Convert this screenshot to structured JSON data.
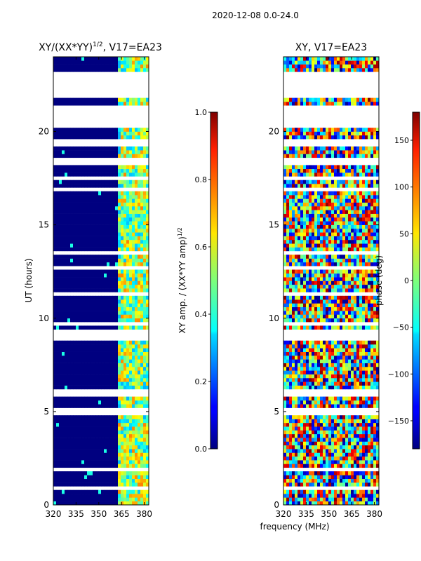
{
  "suptitle": "2020-12-08 0.0-24.0",
  "chart_data": [
    {
      "type": "heatmap",
      "title_main": "XY/(XX*YY)",
      "title_exp": "1/2",
      "title_tail": ", V17=EA23",
      "xlabel": "",
      "ylabel": "UT (hours)",
      "xlim": [
        320,
        383
      ],
      "ylim": [
        0,
        24
      ],
      "xticks": [
        "320",
        "335",
        "350",
        "365",
        "380"
      ],
      "xtick_values": [
        320,
        335,
        350,
        365,
        380
      ],
      "yticks": [
        "0",
        "5",
        "10",
        "15",
        "20"
      ],
      "ytick_values": [
        0,
        5,
        10,
        15,
        20
      ],
      "colorbar": {
        "label": "XY amp. / (XX*YY amp)",
        "label_exp": "1/2",
        "range": [
          0.0,
          1.0
        ],
        "ticks": [
          "0.0",
          "0.2",
          "0.4",
          "0.6",
          "0.8",
          "1.0"
        ],
        "tick_values": [
          0.0,
          0.2,
          0.4,
          0.6,
          0.8,
          1.0
        ]
      },
      "description_gaps_hours": [
        [
          0.8,
          0.9
        ],
        [
          1.9,
          2.0
        ],
        [
          5.0,
          5.1
        ],
        [
          6.0,
          6.2
        ],
        [
          8.8,
          9.4
        ],
        [
          9.6,
          9.8
        ],
        [
          11.2,
          11.3
        ],
        [
          12.6,
          12.8
        ],
        [
          13.5,
          13.6
        ],
        [
          16.8,
          17.0
        ],
        [
          17.4,
          17.6
        ],
        [
          18.2,
          18.6
        ],
        [
          19.3,
          19.5
        ],
        [
          20.3,
          21.4
        ],
        [
          21.8,
          23.2
        ]
      ],
      "bright_band_mhz": [
        362,
        383
      ]
    },
    {
      "type": "heatmap",
      "title": "XY, V17=EA23",
      "xlabel": "frequency (MHz)",
      "ylabel": "",
      "xlim": [
        320,
        383
      ],
      "ylim": [
        0,
        24
      ],
      "xticks": [
        "320",
        "335",
        "350",
        "365",
        "380"
      ],
      "xtick_values": [
        320,
        335,
        350,
        365,
        380
      ],
      "yticks": [
        "0",
        "5",
        "10",
        "15",
        "20"
      ],
      "ytick_values": [
        0,
        5,
        10,
        15,
        20
      ],
      "colorbar": {
        "label": "phase (deg)",
        "range": [
          -180,
          180
        ],
        "ticks": [
          "−150",
          "−100",
          "−50",
          "0",
          "50",
          "100",
          "150"
        ],
        "tick_values": [
          -150,
          -100,
          -50,
          0,
          50,
          100,
          150
        ]
      },
      "description_gaps_hours": [
        [
          0.8,
          0.9
        ],
        [
          1.9,
          2.0
        ],
        [
          5.0,
          5.1
        ],
        [
          6.0,
          6.2
        ],
        [
          8.8,
          9.4
        ],
        [
          9.6,
          9.8
        ],
        [
          11.2,
          11.3
        ],
        [
          12.6,
          12.8
        ],
        [
          13.5,
          13.6
        ],
        [
          16.8,
          17.0
        ],
        [
          17.4,
          17.6
        ],
        [
          18.2,
          18.6
        ],
        [
          19.3,
          19.5
        ],
        [
          20.3,
          21.4
        ],
        [
          21.8,
          23.2
        ]
      ]
    }
  ]
}
